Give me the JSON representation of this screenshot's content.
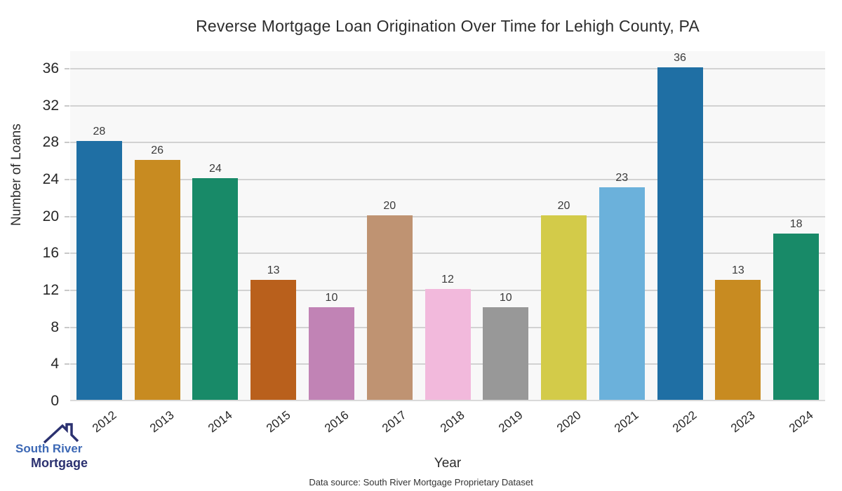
{
  "title": "Reverse Mortgage Loan Origination Over Time for Lehigh County, PA",
  "chart_data": {
    "type": "bar",
    "categories": [
      "2012",
      "2013",
      "2014",
      "2015",
      "2016",
      "2017",
      "2018",
      "2019",
      "2020",
      "2021",
      "2022",
      "2023",
      "2024"
    ],
    "values": [
      28,
      26,
      24,
      13,
      10,
      20,
      12,
      10,
      20,
      23,
      36,
      13,
      18
    ],
    "bar_colors": [
      "#1f6fa4",
      "#c88b21",
      "#188a68",
      "#b9601c",
      "#c183b5",
      "#bf9372",
      "#f2b9dc",
      "#989898",
      "#d3cb49",
      "#6bb1db",
      "#1f6fa4",
      "#c88b21",
      "#188a68"
    ],
    "value_labels": [
      "28",
      "26",
      "24",
      "13",
      "10",
      "20",
      "12",
      "10",
      "20",
      "23",
      "36",
      "13",
      "18"
    ],
    "title": "Reverse Mortgage Loan Origination Over Time for Lehigh County, PA",
    "xlabel": "Year",
    "ylabel": "Number of Loans",
    "ylim": [
      0,
      37.9
    ],
    "yticks": [
      0,
      4,
      8,
      12,
      16,
      20,
      24,
      28,
      32,
      36
    ],
    "grid": "horizontal",
    "legend": "none",
    "plot_bg": "#f8f8f8",
    "gridline_color": "#d2d2d2"
  },
  "caption": "Data source: South River Mortgage Proprietary Dataset",
  "logo": {
    "line1": "South River",
    "line2": "Mortgage",
    "color1": "#3c68b5",
    "color2": "#2b3170",
    "icon": "house-roof-icon"
  }
}
